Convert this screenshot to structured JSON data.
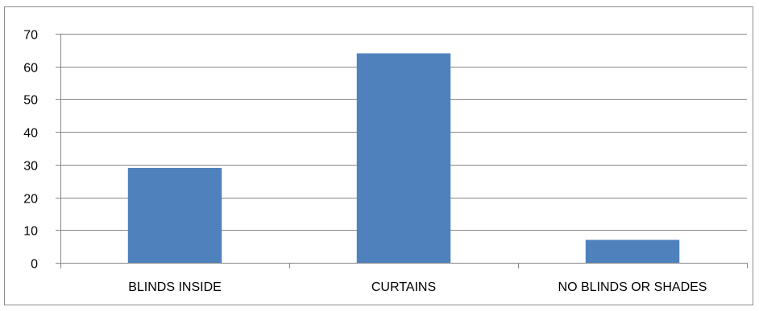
{
  "chart_data": {
    "type": "bar",
    "categories": [
      "BLINDS INSIDE",
      "CURTAINS",
      "NO BLINDS OR SHADES"
    ],
    "values": [
      29,
      64,
      7
    ],
    "title": "",
    "xlabel": "",
    "ylabel": "",
    "ylim": [
      0,
      70
    ],
    "yticks": [
      0,
      10,
      20,
      30,
      40,
      50,
      60,
      70
    ],
    "grid": true,
    "legend": "none",
    "colors": {
      "bar": "#4f81bd",
      "grid": "#878787",
      "axis": "#878787",
      "frame": "#8c8c8c"
    }
  }
}
